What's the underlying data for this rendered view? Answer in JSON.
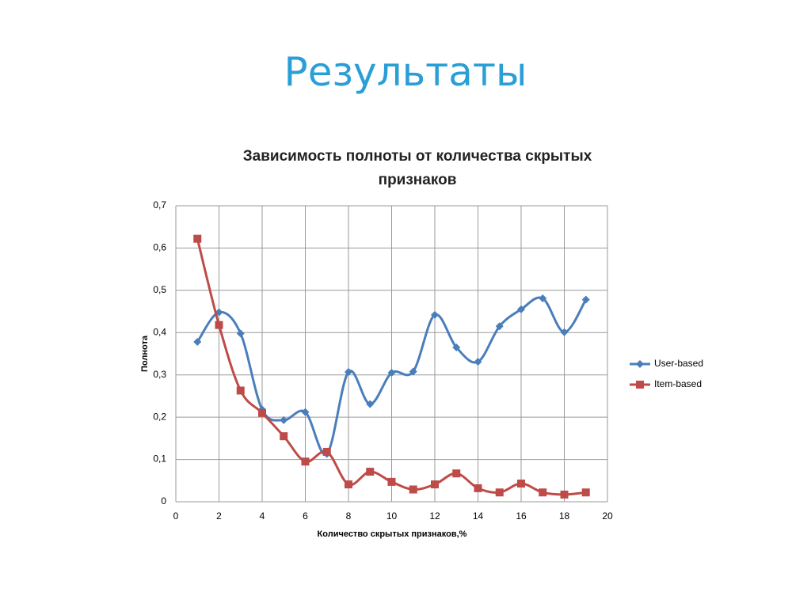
{
  "title": "Результаты",
  "chart_data": {
    "type": "line",
    "title": "Зависимость полноты от количества скрытых признаков",
    "x_label": "Количество скрытых признаков,%",
    "y_label": "Полнота",
    "x": [
      1,
      2,
      3,
      4,
      5,
      6,
      7,
      8,
      9,
      10,
      11,
      12,
      13,
      14,
      15,
      16,
      17,
      18,
      19
    ],
    "series": [
      {
        "name": "User-based",
        "color": "#4a7ebb",
        "marker": "diamond",
        "values": [
          0.378,
          0.448,
          0.398,
          0.218,
          0.193,
          0.212,
          0.113,
          0.307,
          0.231,
          0.305,
          0.308,
          0.442,
          0.365,
          0.331,
          0.415,
          0.455,
          0.481,
          0.401,
          0.478
        ]
      },
      {
        "name": "Item-based",
        "color": "#be4b48",
        "marker": "square",
        "values": [
          0.622,
          0.418,
          0.263,
          0.21,
          0.155,
          0.095,
          0.118,
          0.041,
          0.071,
          0.047,
          0.029,
          0.041,
          0.067,
          0.032,
          0.022,
          0.043,
          0.022,
          0.017,
          0.022
        ]
      }
    ],
    "xlim": [
      0,
      20
    ],
    "xticks": [
      0,
      2,
      4,
      6,
      8,
      10,
      12,
      14,
      16,
      18,
      20
    ],
    "ylim": [
      0,
      0.7
    ],
    "yticks": [
      0,
      {
        "value": 0.1,
        "label": "0,1"
      },
      {
        "value": 0.2,
        "label": "0,2"
      },
      {
        "value": 0.3,
        "label": "0,3"
      },
      {
        "value": 0.4,
        "label": "0,4"
      },
      {
        "value": 0.5,
        "label": "0,5"
      },
      {
        "value": 0.6,
        "label": "0,6"
      },
      {
        "value": 0.7,
        "label": "0,7"
      }
    ],
    "grid": true,
    "smooth": true,
    "legend": "right"
  }
}
